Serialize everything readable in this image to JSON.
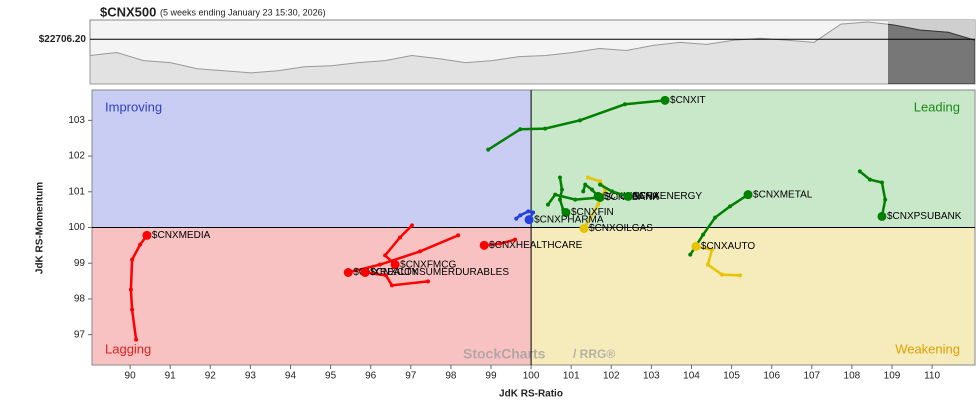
{
  "chart_data": [
    {
      "type": "area",
      "title": "$CNX500",
      "subtitle": "(5 weeks ending January 23 15:30, 2026)",
      "values": [
        22459,
        22505,
        22382,
        22351,
        22258,
        22227,
        22196,
        22227,
        22289,
        22304,
        22351,
        22382,
        22459,
        22413,
        22351,
        22382,
        22443,
        22459,
        22505,
        22567,
        22536,
        22613,
        22660,
        22629,
        22691,
        22722,
        22691,
        22660,
        22938,
        22969,
        22923,
        22845,
        22814,
        22691
      ],
      "ylim": [
        22026,
        23000
      ],
      "yticks": [
        {
          "value": 22706.2,
          "label": "$22706.20"
        }
      ],
      "color": "#999999"
    },
    {
      "type": "scatter",
      "xlabel": "JdK RS-Ratio",
      "ylabel": "JdK RS-Momentum",
      "xlim": [
        89.05,
        111.07
      ],
      "ylim": [
        96.15,
        103.85
      ],
      "xticks": [
        90,
        91,
        92,
        93,
        94,
        95,
        96,
        97,
        98,
        99,
        100,
        101,
        102,
        103,
        104,
        105,
        106,
        107,
        108,
        109,
        110
      ],
      "yticks": [
        97,
        98,
        99,
        100,
        101,
        102,
        103
      ],
      "center": [
        100,
        100
      ],
      "quadrants": [
        {
          "name": "Improving",
          "color": "#2e3fc4",
          "fill": "#c9cdf4"
        },
        {
          "name": "Leading",
          "color": "#1a8a1a",
          "fill": "#c9e7c9"
        },
        {
          "name": "Lagging",
          "color": "#e02020",
          "fill": "#f8c2c2"
        },
        {
          "name": "Weakening",
          "color": "#e0a000",
          "fill": "#f6ebbb"
        }
      ],
      "watermark": [
        "StockCharts",
        "/ RRG®"
      ],
      "series": [
        {
          "name": "$CNXIT",
          "color": "#008000",
          "x": [
            98.93,
            99.73,
            100.35,
            101.22,
            102.34,
            103.34
          ],
          "y": [
            102.18,
            102.75,
            102.77,
            103.0,
            103.45,
            103.56
          ]
        },
        {
          "name": "$CNXPSUBANK",
          "color": "#008000",
          "x": [
            108.2,
            108.45,
            108.75,
            108.83,
            108.75
          ],
          "y": [
            101.57,
            101.34,
            101.26,
            100.78,
            100.31
          ]
        },
        {
          "name": "$CNXMETAL",
          "color": "#008000",
          "x": [
            103.97,
            104.29,
            104.59,
            104.96,
            105.41
          ],
          "y": [
            99.24,
            99.8,
            100.28,
            100.59,
            100.92
          ]
        },
        {
          "name": "$CNXAUTO",
          "color": "#e8c400",
          "x": [
            105.21,
            104.76,
            104.41,
            104.51,
            104.11
          ],
          "y": [
            98.66,
            98.68,
            98.96,
            99.38,
            99.47
          ]
        },
        {
          "name": "$CNXOILGAS",
          "color": "#e8c400",
          "x": [
            101.42,
            101.72,
            101.85,
            101.67,
            101.32
          ],
          "y": [
            101.4,
            101.29,
            101.06,
            100.64,
            99.97
          ]
        },
        {
          "name": "$CNXFIN",
          "color": "#008000",
          "x": [
            100.72,
            100.77,
            100.72,
            100.8,
            100.87
          ],
          "y": [
            101.4,
            101.06,
            100.78,
            100.5,
            100.42
          ]
        },
        {
          "name": "$CNXINFRA",
          "color": "#008000",
          "x": [
            101.3,
            101.35,
            101.52,
            101.67
          ],
          "y": [
            101.01,
            101.2,
            101.06,
            100.87
          ]
        },
        {
          "name": "$CNXBANK",
          "color": "#008000",
          "x": [
            100.42,
            100.6,
            101.1,
            101.72
          ],
          "y": [
            100.64,
            100.92,
            100.78,
            100.84
          ]
        },
        {
          "name": "$CNXENERGY",
          "color": "#008000",
          "x": [
            101.72,
            102.02,
            102.42
          ],
          "y": [
            101.2,
            101.01,
            100.87
          ]
        },
        {
          "name": "$CNXPHARMA",
          "color": "#2040e0",
          "x": [
            99.63,
            99.73,
            99.93,
            100.05,
            99.95
          ],
          "y": [
            100.25,
            100.34,
            100.45,
            100.42,
            100.22
          ]
        },
        {
          "name": "$CNXMEDIA",
          "color": "#ff0000",
          "x": [
            90.15,
            90.05,
            90.02,
            90.05,
            90.25,
            90.42
          ],
          "y": [
            96.86,
            97.7,
            98.26,
            99.1,
            99.52,
            99.78
          ]
        },
        {
          "name": "$CNXHEALTHCARE",
          "color": "#ff0000",
          "x": [
            99.6,
            99.23,
            98.83
          ],
          "y": [
            99.66,
            99.55,
            99.5
          ]
        },
        {
          "name": "$CNXFMCG",
          "color": "#ff0000",
          "x": [
            97.03,
            96.73,
            96.36,
            96.61
          ],
          "y": [
            100.06,
            99.72,
            99.22,
            98.96
          ]
        },
        {
          "name": "$CNXREALTY",
          "color": "#ff0000",
          "x": [
            98.18,
            97.23,
            96.23,
            95.44
          ],
          "y": [
            99.78,
            99.33,
            98.96,
            98.74
          ]
        },
        {
          "name": "$CNXCONSUMERDURABLES",
          "color": "#ff0000",
          "x": [
            97.43,
            96.53,
            96.38,
            95.86
          ],
          "y": [
            98.49,
            98.38,
            98.66,
            98.74
          ]
        }
      ]
    }
  ]
}
